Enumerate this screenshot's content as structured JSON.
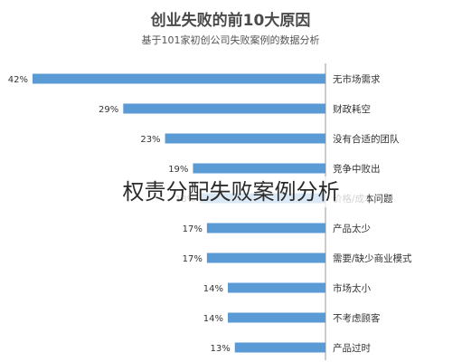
{
  "chart_data": {
    "type": "bar",
    "orientation": "horizontal",
    "direction": "right-to-left",
    "title": "创业失败的前10大原因",
    "subtitle": "基于101家初创公司失败案例的数据分析",
    "categories": [
      "无市场需求",
      "财政耗空",
      "没有合适的团队",
      "竞争中败出",
      "价格/成本问题",
      "产品太少",
      "需要/缺少商业模式",
      "市场太小",
      "不考虑顾客",
      "产品过时"
    ],
    "values": [
      42,
      29,
      23,
      19,
      18,
      17,
      17,
      14,
      14,
      13
    ],
    "value_labels": [
      "42%",
      "29%",
      "23%",
      "19%",
      "18%",
      "17%",
      "17%",
      "14%",
      "14%",
      "13%"
    ],
    "xlim": [
      0,
      42
    ],
    "bar_color": "#5b9bd5",
    "grid": false
  },
  "overlay_text": "权责分配失败案例分析"
}
